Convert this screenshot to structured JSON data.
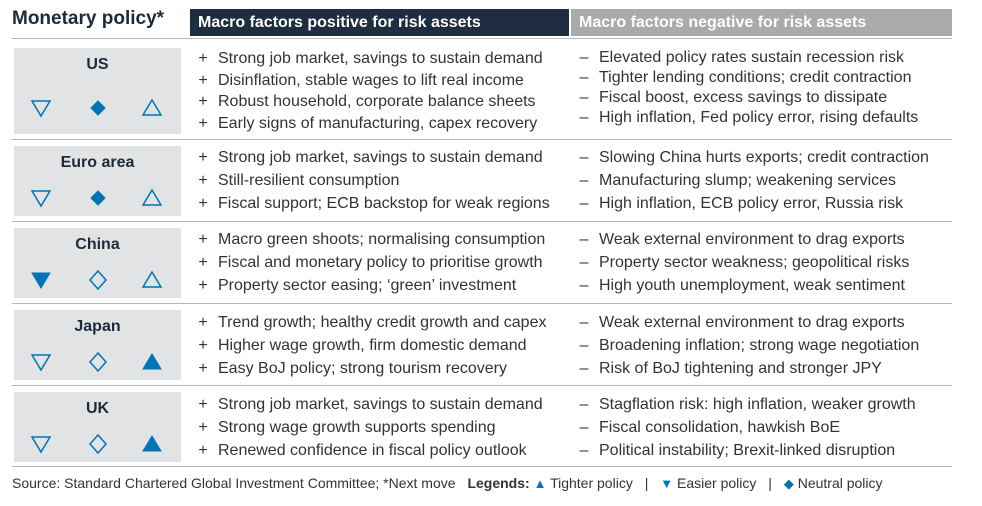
{
  "title": "Monetary policy*",
  "headers": {
    "positive": "Macro factors positive for risk assets",
    "negative": "Macro factors negative for risk assets"
  },
  "bullet_marks": {
    "positive": "+",
    "negative": "–"
  },
  "symbol_color": "#0074b7",
  "regions": [
    {
      "name": "US",
      "policy": {
        "easier": "outline",
        "neutral": "filled",
        "tighter": "outline"
      },
      "positive": [
        "Strong job market, savings to sustain demand",
        "Disinflation, stable wages to lift real income",
        "Robust household, corporate balance sheets",
        "Early signs of manufacturing, capex recovery"
      ],
      "negative": [
        "Elevated policy rates sustain recession risk",
        "Tighter lending conditions; credit contraction",
        "Fiscal boost, excess savings to dissipate",
        "High inflation, Fed policy error, rising defaults"
      ]
    },
    {
      "name": "Euro area",
      "policy": {
        "easier": "outline",
        "neutral": "filled",
        "tighter": "outline"
      },
      "positive": [
        "Strong job market, savings to sustain demand",
        "Still-resilient consumption",
        "Fiscal support; ECB backstop for weak regions"
      ],
      "negative": [
        "Slowing China hurts exports; credit contraction",
        "Manufacturing slump; weakening services",
        "High inflation, ECB policy error, Russia risk"
      ]
    },
    {
      "name": "China",
      "policy": {
        "easier": "filled",
        "neutral": "outline",
        "tighter": "outline"
      },
      "positive": [
        "Macro green shoots; normalising consumption",
        "Fiscal and monetary policy to prioritise growth",
        "Property sector easing; ‘green’ investment"
      ],
      "negative": [
        "Weak external environment to drag exports",
        "Property sector weakness; geopolitical risks",
        "High youth unemployment, weak sentiment"
      ]
    },
    {
      "name": "Japan",
      "policy": {
        "easier": "outline",
        "neutral": "outline",
        "tighter": "filled"
      },
      "positive": [
        "Trend growth; healthy credit growth and capex",
        "Higher wage growth, firm domestic demand",
        "Easy BoJ policy; strong tourism recovery"
      ],
      "negative": [
        "Weak external environment to drag exports",
        "Broadening inflation; strong wage negotiation",
        "Risk of BoJ tightening and stronger JPY"
      ]
    },
    {
      "name": "UK",
      "policy": {
        "easier": "outline",
        "neutral": "outline",
        "tighter": "filled"
      },
      "positive": [
        "Strong job market, savings to sustain demand",
        "Strong wage growth supports spending",
        "Renewed confidence in fiscal policy outlook"
      ],
      "negative": [
        "Stagflation risk: high inflation, weaker growth",
        "Fiscal consolidation, hawkish BoE",
        "Political instability; Brexit-linked disruption"
      ]
    }
  ],
  "footer": {
    "source": "Source: Standard Chartered Global Investment Committee; *Next move",
    "legends_label": "Legends:",
    "tighter_glyph": "▲",
    "tighter": "Tighter policy",
    "easier_glyph": "▼",
    "easier": "Easier policy",
    "neutral_glyph": "◆",
    "neutral": "Neutral policy",
    "separator": "|"
  }
}
